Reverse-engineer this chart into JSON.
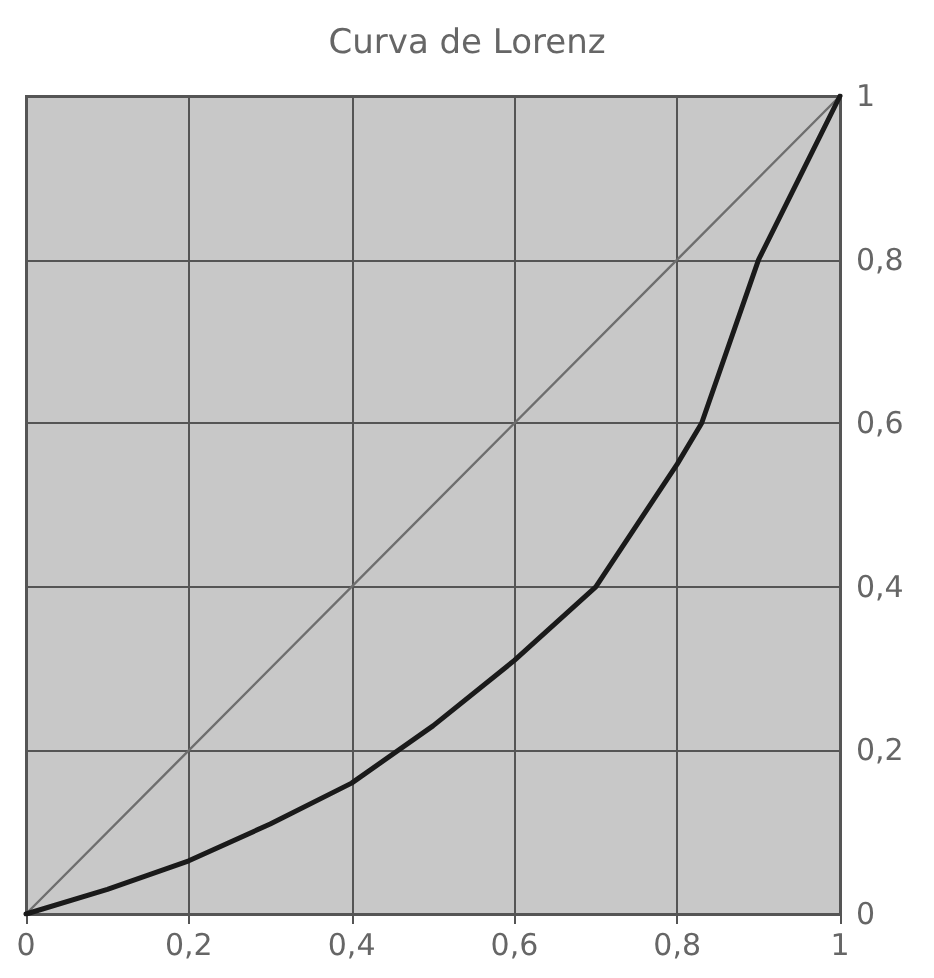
{
  "chart_data": {
    "type": "line",
    "title": "Curva de Lorenz",
    "series": [
      {
        "color": "#6e6e6e",
        "x": [
          0,
          1
        ],
        "values": [
          0,
          1
        ]
      },
      {
        "color": "#1a1a1a",
        "x": [
          0,
          0.1,
          0.2,
          0.3,
          0.4,
          0.5,
          0.6,
          0.7,
          0.8,
          0.83,
          0.9,
          0.95,
          1
        ],
        "values": [
          0,
          0.03,
          0.065,
          0.11,
          0.16,
          0.23,
          0.31,
          0.4,
          0.55,
          0.6,
          0.8,
          0.9,
          1
        ]
      }
    ],
    "xlim": [
      0,
      1
    ],
    "xticks": [
      0,
      {
        "value": 0.2,
        "label": "0,2"
      },
      {
        "value": 0.4,
        "label": "0,4"
      },
      {
        "value": 0.6,
        "label": "0,6"
      },
      {
        "value": 0.8,
        "label": "0,8"
      },
      1
    ],
    "ylim": [
      0,
      1
    ],
    "yticks": [
      0,
      {
        "value": 0.2,
        "label": "0,2"
      },
      {
        "value": 0.4,
        "label": "0,4"
      },
      {
        "value": 0.6,
        "label": "0,6"
      },
      {
        "value": 0.8,
        "label": "0,8"
      },
      1
    ],
    "grid": true,
    "marker": "none",
    "line_style": "solid"
  }
}
